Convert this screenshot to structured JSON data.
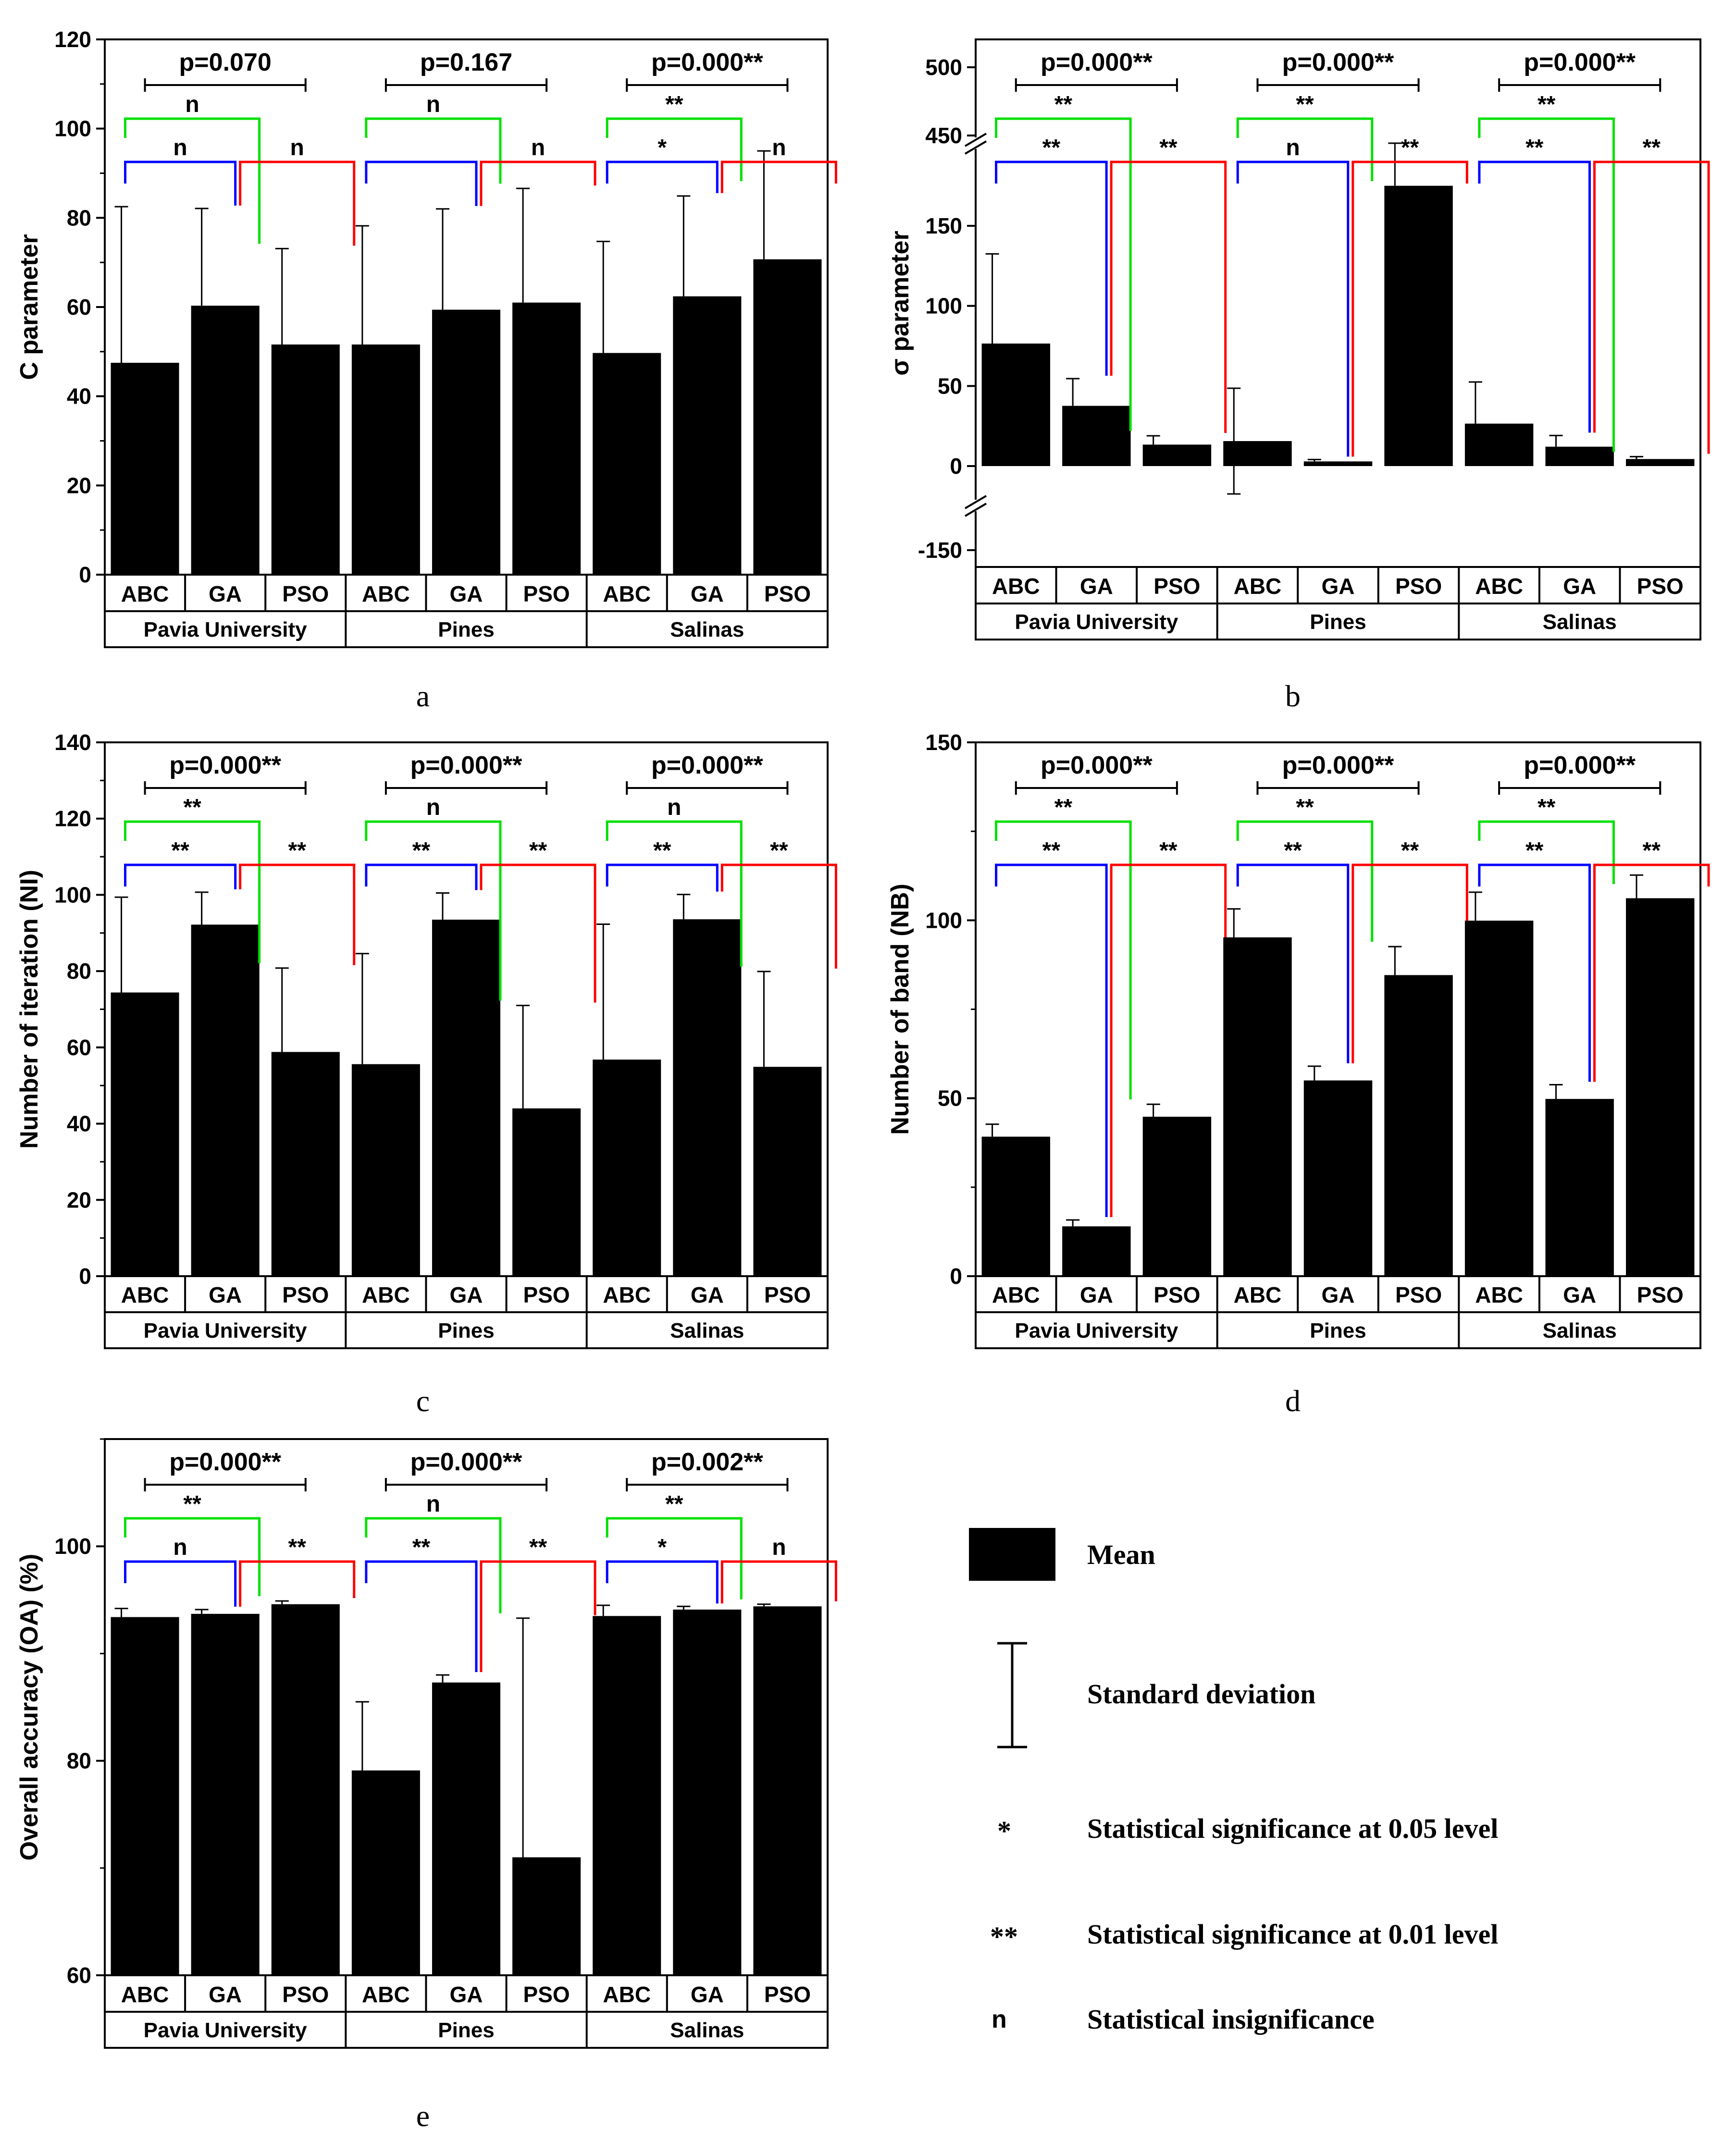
{
  "legend": {
    "mean_label": "Mean",
    "sd_label": "Standard deviation",
    "sig05_symbol": "*",
    "sig05_label": "Statistical significance at 0.05 level",
    "sig01_symbol": "**",
    "sig01_label": "Statistical significance at 0.01 level",
    "ns_symbol": "n",
    "ns_label": "Statistical insignificance"
  },
  "colors": {
    "bar": "#000000",
    "abc_ga": "#0000ff",
    "ga_pso": "#ff0000",
    "abc_pso": "#00e000",
    "overall": "#000000"
  },
  "chart_data": [
    {
      "id": "a",
      "panel_label": "a",
      "type": "bar",
      "title": "",
      "ylabel": "C parameter",
      "ylim": [
        0,
        120
      ],
      "yticks": [
        0,
        20,
        40,
        60,
        80,
        100,
        120
      ],
      "groups": [
        "Pavia University",
        "Pines",
        "Salinas"
      ],
      "categories": [
        "ABC",
        "GA",
        "PSO"
      ],
      "values": [
        [
          47.5,
          60.3,
          51.6
        ],
        [
          51.6,
          59.4,
          61.0
        ],
        [
          49.7,
          62.4,
          70.7
        ]
      ],
      "sd": [
        [
          35.0,
          21.8,
          21.5
        ],
        [
          26.6,
          22.6,
          25.6
        ],
        [
          25.0,
          22.5,
          24.3
        ]
      ],
      "overall_p": [
        "p=0.070",
        "p=0.167",
        "p=0.000**"
      ],
      "pairwise": [
        {
          "abc_ga": "n",
          "ga_pso": "n",
          "abc_pso": "n"
        },
        {
          "abc_ga": "",
          "ga_pso": "n",
          "abc_pso": "n"
        },
        {
          "abc_ga": "*",
          "ga_pso": "n",
          "abc_pso": "**"
        }
      ]
    },
    {
      "id": "b",
      "panel_label": "b",
      "type": "bar",
      "title": "",
      "ylabel": "σ  parameter",
      "ylim": [
        -150,
        500
      ],
      "yticks": [
        -150,
        0,
        50,
        100,
        150,
        450,
        500
      ],
      "axis_breaks": [
        [
          -80,
          -10
        ],
        [
          190,
          440
        ]
      ],
      "groups": [
        "Pavia University",
        "Pines",
        "Salinas"
      ],
      "categories": [
        "ABC",
        "GA",
        "PSO"
      ],
      "values": [
        [
          76.5,
          37.6,
          13.4
        ],
        [
          15.6,
          2.9,
          175.0
        ],
        [
          26.5,
          12.1,
          4.4
        ]
      ],
      "sd": [
        [
          56.0,
          17.0,
          5.5
        ],
        [
          33.0,
          1.2,
          45.0
        ],
        [
          26.0,
          7.0,
          1.5
        ]
      ],
      "overall_p": [
        "p=0.000**",
        "p=0.000**",
        "p=0.000**"
      ],
      "pairwise": [
        {
          "abc_ga": "**",
          "ga_pso": "**",
          "abc_pso": "**"
        },
        {
          "abc_ga": "n",
          "ga_pso": "**",
          "abc_pso": "**"
        },
        {
          "abc_ga": "**",
          "ga_pso": "**",
          "abc_pso": "**"
        }
      ]
    },
    {
      "id": "c",
      "panel_label": "c",
      "type": "bar",
      "title": "",
      "ylabel": "Number of iteration (NI)",
      "ylim": [
        0,
        140
      ],
      "yticks": [
        0,
        20,
        40,
        60,
        80,
        100,
        120,
        140
      ],
      "groups": [
        "Pavia University",
        "Pines",
        "Salinas"
      ],
      "categories": [
        "ABC",
        "GA",
        "PSO"
      ],
      "values": [
        [
          74.4,
          92.2,
          58.8
        ],
        [
          55.6,
          93.5,
          44.0
        ],
        [
          56.8,
          93.6,
          54.9
        ]
      ],
      "sd": [
        [
          25.0,
          8.5,
          22.0
        ],
        [
          29.0,
          7.0,
          27.0
        ],
        [
          35.5,
          6.5,
          25.0
        ]
      ],
      "overall_p": [
        "p=0.000**",
        "p=0.000**",
        "p=0.000**"
      ],
      "pairwise": [
        {
          "abc_ga": "**",
          "ga_pso": "**",
          "abc_pso": "**"
        },
        {
          "abc_ga": "**",
          "ga_pso": "**",
          "abc_pso": "n"
        },
        {
          "abc_ga": "**",
          "ga_pso": "**",
          "abc_pso": "n"
        }
      ]
    },
    {
      "id": "d",
      "panel_label": "d",
      "type": "bar",
      "title": "",
      "ylabel": "Number of band (NB)",
      "ylim": [
        0,
        150
      ],
      "yticks": [
        0,
        50,
        100,
        150
      ],
      "groups": [
        "Pavia University",
        "Pines",
        "Salinas"
      ],
      "categories": [
        "ABC",
        "GA",
        "PSO"
      ],
      "values": [
        [
          39.2,
          14.0,
          44.8
        ],
        [
          95.2,
          55.0,
          84.6
        ],
        [
          99.9,
          49.8,
          106.2
        ]
      ],
      "sd": [
        [
          3.5,
          1.8,
          3.5
        ],
        [
          8.0,
          4.0,
          8.0
        ],
        [
          8.0,
          4.0,
          6.5
        ]
      ],
      "overall_p": [
        "p=0.000**",
        "p=0.000**",
        "p=0.000**"
      ],
      "pairwise": [
        {
          "abc_ga": "**",
          "ga_pso": "**",
          "abc_pso": "**"
        },
        {
          "abc_ga": "**",
          "ga_pso": "**",
          "abc_pso": "**"
        },
        {
          "abc_ga": "**",
          "ga_pso": "**",
          "abc_pso": "**"
        }
      ]
    },
    {
      "id": "e",
      "panel_label": "e",
      "type": "bar",
      "title": "",
      "ylabel": "Overall accuracy (OA) (%)",
      "ylim": [
        60,
        110
      ],
      "yticks": [
        60,
        80,
        100
      ],
      "groups": [
        "Pavia University",
        "Pines",
        "Salinas"
      ],
      "categories": [
        "ABC",
        "GA",
        "PSO"
      ],
      "values": [
        [
          93.4,
          93.7,
          94.6
        ],
        [
          79.1,
          87.3,
          71.0
        ],
        [
          93.5,
          94.1,
          94.4
        ]
      ],
      "sd": [
        [
          0.8,
          0.4,
          0.3
        ],
        [
          6.4,
          0.7,
          22.3
        ],
        [
          1.0,
          0.3,
          0.2
        ]
      ],
      "overall_p": [
        "p=0.000**",
        "p=0.000**",
        "p=0.002**"
      ],
      "pairwise": [
        {
          "abc_ga": "n",
          "ga_pso": "**",
          "abc_pso": "**"
        },
        {
          "abc_ga": "**",
          "ga_pso": "**",
          "abc_pso": "n"
        },
        {
          "abc_ga": "*",
          "ga_pso": "n",
          "abc_pso": "**"
        }
      ]
    }
  ]
}
